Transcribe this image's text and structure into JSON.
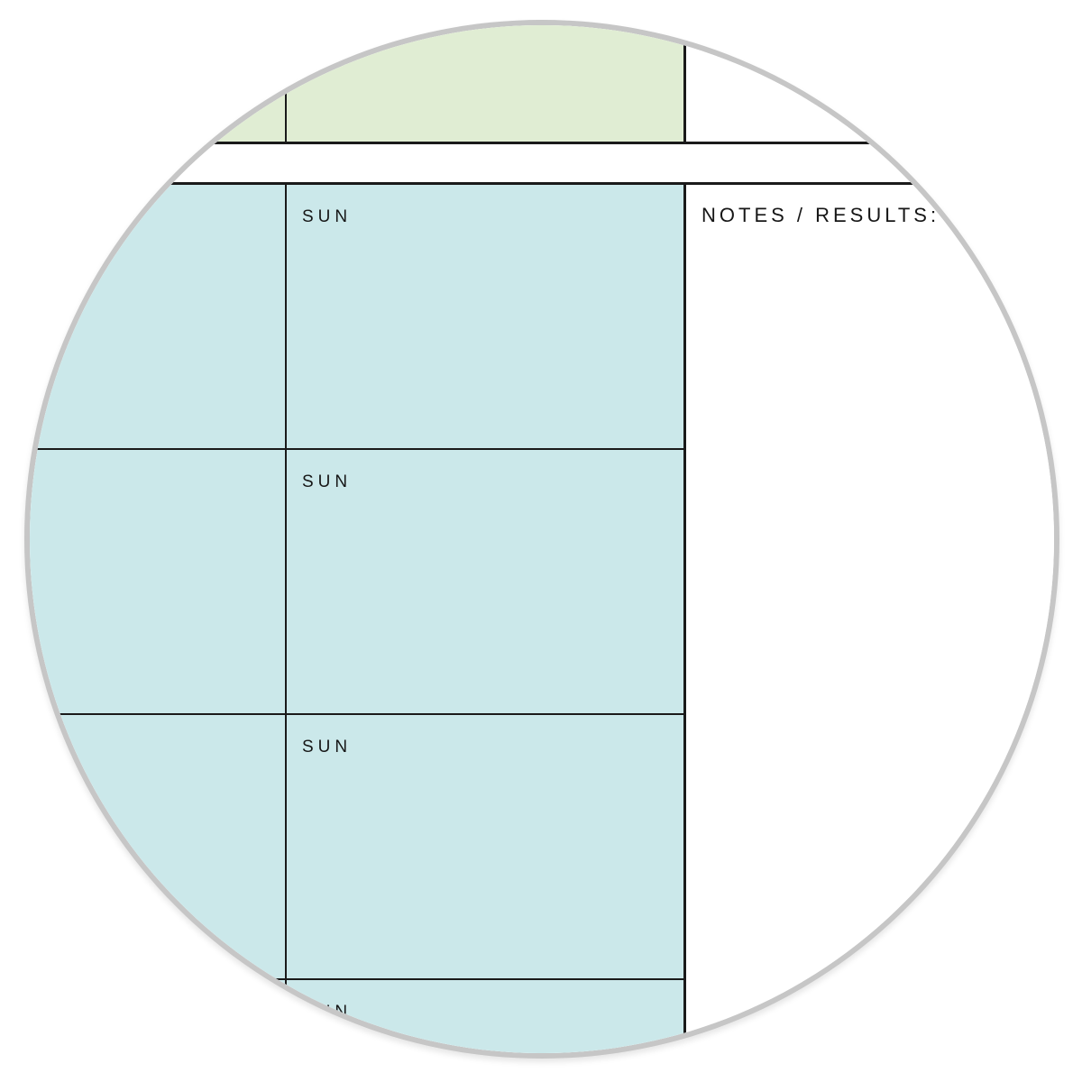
{
  "planner": {
    "day_labels": [
      "SUN",
      "SUN",
      "SUN",
      "SUN"
    ],
    "notes_header_label": "NOTES / RESULTS:",
    "colors": {
      "header_band": "#e0edd3",
      "day_cells": "#cbe8ea",
      "grid_lines": "#1a1a1a",
      "circle_border": "#c6c6c6",
      "page_background": "#ffffff"
    }
  }
}
